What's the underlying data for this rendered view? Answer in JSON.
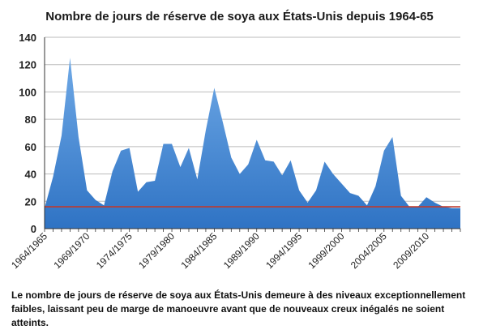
{
  "chart_data": {
    "type": "area",
    "title": "Nombre de jours de réserve de soya aux États-Unis depuis 1964-65",
    "xlabel": "",
    "ylabel": "",
    "ylim": [
      0,
      140
    ],
    "yticks": [
      0,
      20,
      40,
      60,
      80,
      100,
      120,
      140
    ],
    "grid": true,
    "legend": "none",
    "x": [
      "1964/1965",
      "1965/1966",
      "1966/1967",
      "1967/1968",
      "1968/1969",
      "1969/1970",
      "1970/1971",
      "1971/1972",
      "1972/1973",
      "1973/1974",
      "1974/1975",
      "1975/1976",
      "1976/1977",
      "1977/1978",
      "1978/1979",
      "1979/1980",
      "1980/1981",
      "1981/1982",
      "1982/1983",
      "1983/1984",
      "1984/1985",
      "1985/1986",
      "1986/1987",
      "1987/1988",
      "1988/1989",
      "1989/1990",
      "1990/1991",
      "1991/1992",
      "1992/1993",
      "1993/1994",
      "1994/1995",
      "1995/1996",
      "1996/1997",
      "1997/1998",
      "1998/1999",
      "1999/2000",
      "2000/2001",
      "2001/2002",
      "2002/2003",
      "2003/2004",
      "2004/2005",
      "2005/2006",
      "2006/2007",
      "2007/2008",
      "2008/2009",
      "2009/2010",
      "2010/2011",
      "2011/2012",
      "2012/2013",
      "2013/2014"
    ],
    "xtick_labels": [
      "1964/1965",
      "1969/1970",
      "1974/1975",
      "1979/1980",
      "1984/1985",
      "1989/1990",
      "1994/1995",
      "1999/2000",
      "2004/2005",
      "2009/2010"
    ],
    "values": [
      15,
      38,
      68,
      125,
      67,
      28,
      21,
      17,
      42,
      57,
      59,
      27,
      34,
      35,
      62,
      62,
      45,
      59,
      36,
      72,
      103,
      78,
      52,
      40,
      47,
      65,
      50,
      49,
      39,
      50,
      28,
      19,
      28,
      49,
      40,
      33,
      26,
      24,
      17,
      31,
      57,
      67,
      24,
      16,
      16,
      23,
      19,
      16,
      15,
      15
    ],
    "reference_line": {
      "value": 16,
      "color": "#c0392b"
    },
    "colors": {
      "area_top": "#6fa9e6",
      "area_bottom": "#2f73c4",
      "grid": "#bbbbbb",
      "axis": "#333333"
    }
  },
  "caption": "Le nombre de jours de réserve de soya aux États-Unis demeure à des niveaux exceptionnellement faibles, laissant peu de marge de manoeuvre avant que de nouveaux creux inégalés ne soient atteints."
}
